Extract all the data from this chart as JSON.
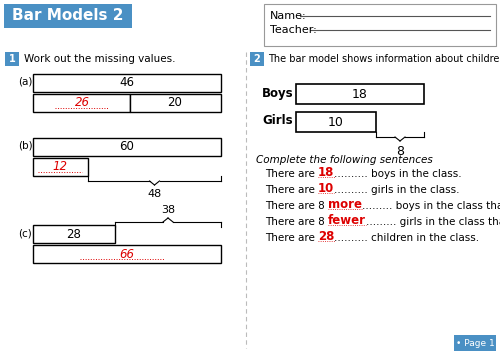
{
  "title": "Bar Models 2",
  "title_bg": "#4a90c4",
  "title_color": "#ffffff",
  "name_label": "Name:",
  "teacher_label": "Teacher:",
  "q1_label": "1",
  "q1_text": "Work out the missing values.",
  "q2_label": "2",
  "q2_text": "The bar model shows information about children in a class.",
  "q1_a_top": "46",
  "q1_a_left": "26",
  "q1_a_right": "20",
  "q1_b_top": "60",
  "q1_b_left": "12",
  "q1_b_right": "48",
  "q1_c_top": "38",
  "q1_c_left": "28",
  "q1_c_bottom": "66",
  "q2_boys": "18",
  "q2_girls": "10",
  "q2_diff": "8",
  "sentences_header": "Complete the following sentences",
  "s1_pre": "There are ",
  "s1_ans": "18",
  "s1_post": ".......... boys in the class.",
  "s2_pre": "There are ",
  "s2_ans": "10",
  "s2_post": ".......... girls in the class.",
  "s3_pre": "There are 8 ",
  "s3_ans": "more",
  "s3_post": "......... boys in the class than girls.",
  "s4_pre": "There are 8 ",
  "s4_ans": "fewer",
  "s4_post": "......... girls in the class than boys.",
  "s5_pre": "There are ",
  "s5_ans": "28",
  "s5_post": ".......... children in the class.",
  "red_color": "#dd0000",
  "bg_color": "#ffffff",
  "page_label": "• Page 1",
  "page_bg": "#4a90c4"
}
